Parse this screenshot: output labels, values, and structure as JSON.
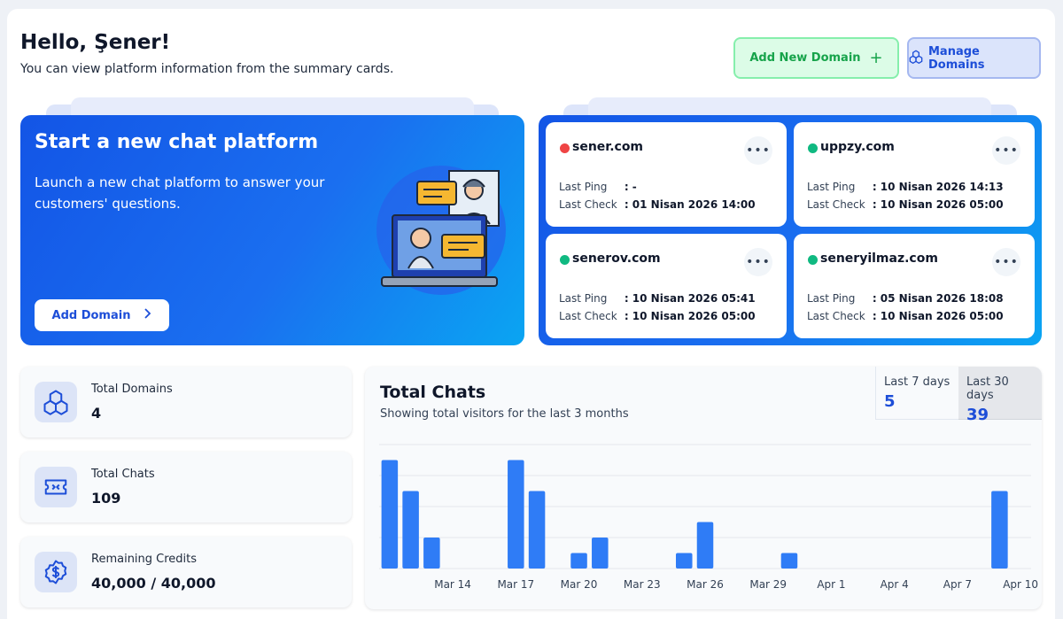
{
  "header": {
    "title": "Hello, Şener!",
    "subtitle": "You can view platform information from the summary cards.",
    "add_new_domain": "Add New Domain",
    "manage_domains": "Manage Domains"
  },
  "hero": {
    "title": "Start a new chat platform",
    "text": "Launch a new chat platform to answer your customers' questions.",
    "button": "Add Domain"
  },
  "domains": [
    {
      "name": "sener.com",
      "status": "offline",
      "status_color": "#ef4444",
      "ping_label": "Last Ping",
      "ping": ": -",
      "check_label": "Last Check",
      "check": ": 01 Nisan 2026 14:00"
    },
    {
      "name": "uppzy.com",
      "status": "online",
      "status_color": "#10b981",
      "ping_label": "Last Ping",
      "ping": ": 10 Nisan 2026 14:13",
      "check_label": "Last Check",
      "check": ": 10 Nisan 2026 05:00"
    },
    {
      "name": "senerov.com",
      "status": "online",
      "status_color": "#10b981",
      "ping_label": "Last Ping",
      "ping": ": 10 Nisan 2026 05:41",
      "check_label": "Last Check",
      "check": ": 10 Nisan 2026 05:00"
    },
    {
      "name": "seneryilmaz.com",
      "status": "online",
      "status_color": "#10b981",
      "ping_label": "Last Ping",
      "ping": ": 05 Nisan 2026 18:08",
      "check_label": "Last Check",
      "check": ": 10 Nisan 2026 05:00"
    }
  ],
  "stats": [
    {
      "label": "Total Domains",
      "value": "4",
      "icon": "cubes-icon"
    },
    {
      "label": "Total Chats",
      "value": "109",
      "icon": "ticket-icon"
    },
    {
      "label": "Remaining Credits",
      "value": "40,000 / 40,000",
      "icon": "dollar-badge-icon"
    }
  ],
  "chats": {
    "title": "Total Chats",
    "subtitle": "Showing total visitors for the last 3 months",
    "range_7_label": "Last 7 days",
    "range_7_value": "5",
    "range_30_label": "Last 30 days",
    "range_30_value": "39"
  },
  "chart_data": {
    "type": "bar",
    "x": [
      "Mar 11",
      "Mar 12",
      "Mar 13",
      "Mar 14",
      "Mar 15",
      "Mar 16",
      "Mar 17",
      "Mar 18",
      "Mar 19",
      "Mar 20",
      "Mar 21",
      "Mar 22",
      "Mar 23",
      "Mar 24",
      "Mar 25",
      "Mar 26",
      "Mar 27",
      "Mar 28",
      "Mar 29",
      "Mar 30",
      "Mar 31",
      "Apr 1",
      "Apr 2",
      "Apr 3",
      "Apr 4",
      "Apr 5",
      "Apr 6",
      "Apr 7",
      "Apr 8",
      "Apr 9",
      "Apr 10"
    ],
    "values": [
      7,
      5,
      2,
      0,
      0,
      0,
      7,
      5,
      0,
      1,
      2,
      0,
      0,
      0,
      1,
      3,
      0,
      0,
      0,
      1,
      0,
      0,
      0,
      0,
      0,
      0,
      0,
      0,
      0,
      5,
      0
    ],
    "tick_labels": [
      "Mar 14",
      "Mar 17",
      "Mar 20",
      "Mar 23",
      "Mar 26",
      "Mar 29",
      "Apr 1",
      "Apr 4",
      "Apr 7",
      "Apr 10"
    ],
    "ylim": [
      0,
      8
    ],
    "grid": true,
    "bar_color": "#2f7cf6"
  }
}
